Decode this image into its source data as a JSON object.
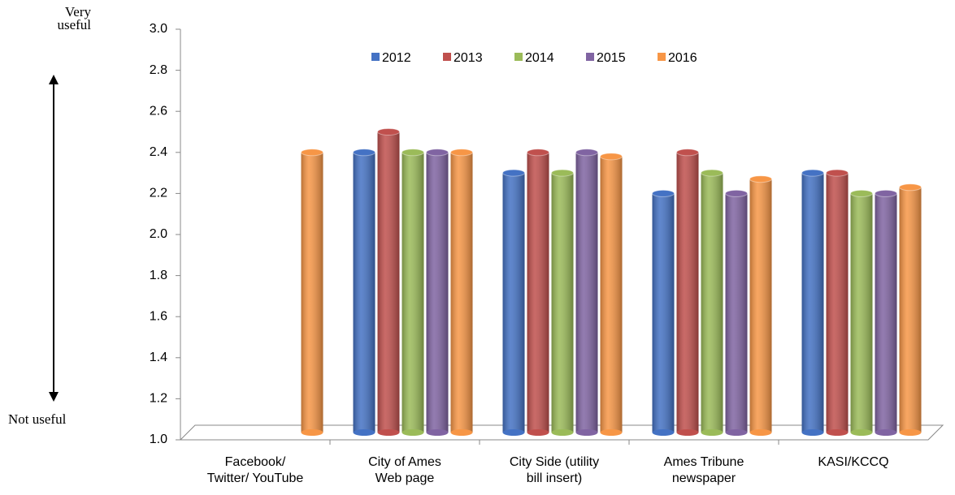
{
  "chart_data": {
    "type": "bar",
    "categories": [
      "Facebook/\nTwitter/ YouTube",
      "City of Ames\nWeb page",
      "City Side (utility\nbill insert)",
      "Ames Tribune\nnewspaper",
      "KASI/KCCQ"
    ],
    "series": [
      {
        "name": "2012",
        "color": "#4472c4",
        "values": [
          null,
          2.4,
          2.3,
          2.2,
          2.3
        ]
      },
      {
        "name": "2013",
        "color": "#c0504d",
        "values": [
          null,
          2.5,
          2.4,
          2.4,
          2.3
        ]
      },
      {
        "name": "2014",
        "color": "#9bbb59",
        "values": [
          null,
          2.4,
          2.3,
          2.3,
          2.2
        ]
      },
      {
        "name": "2015",
        "color": "#8064a2",
        "values": [
          null,
          2.4,
          2.4,
          2.2,
          2.2
        ]
      },
      {
        "name": "2016",
        "color": "#f79646",
        "values": [
          2.4,
          2.4,
          2.38,
          2.27,
          2.23
        ]
      }
    ],
    "ylim": [
      1.0,
      3.0
    ],
    "yticks": [
      {
        "value": 1.0,
        "label": "1.0"
      },
      1.2,
      1.4,
      1.6,
      1.8,
      {
        "value": 2.0,
        "label": "2.0"
      },
      2.2,
      2.4,
      2.6,
      2.8,
      {
        "value": 3.0,
        "label": "3.0"
      }
    ],
    "legend": "top",
    "annotations": [
      "Very\nuseful",
      "Not useful"
    ]
  }
}
